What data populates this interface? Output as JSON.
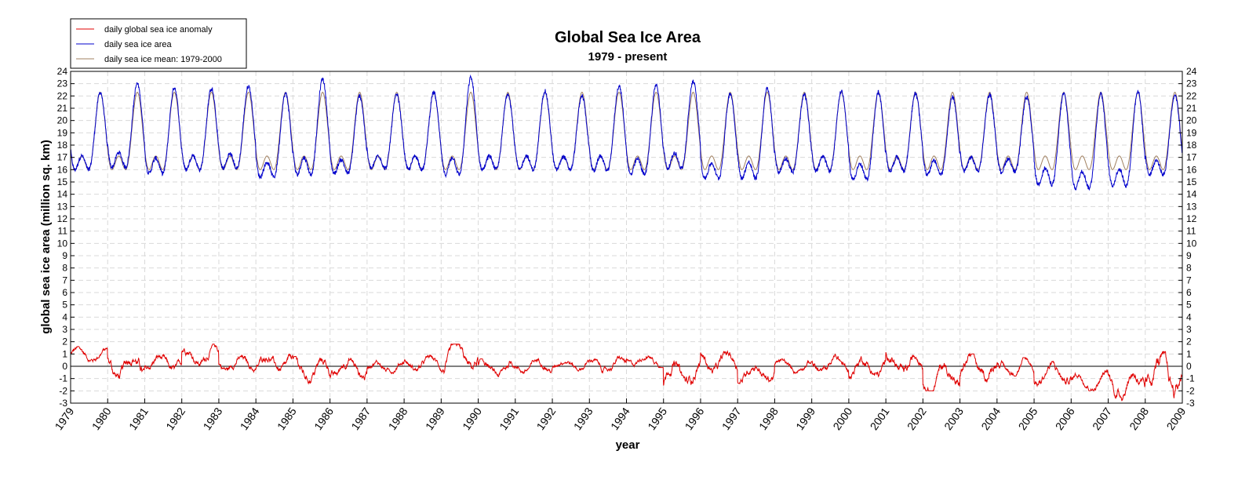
{
  "chart_data": {
    "type": "line",
    "title": "Global Sea Ice Area",
    "subtitle": "1979 - present",
    "xlabel": "year",
    "ylabel": "global sea ice area (million sq. km)",
    "xlim": [
      1979,
      2009
    ],
    "ylim": [
      -3,
      24
    ],
    "grid": true,
    "legend_position": "top-left",
    "x_ticks": [
      "1979",
      "1980",
      "1981",
      "1982",
      "1983",
      "1984",
      "1985",
      "1986",
      "1987",
      "1988",
      "1989",
      "1990",
      "1991",
      "1992",
      "1993",
      "1994",
      "1995",
      "1996",
      "1997",
      "1998",
      "1999",
      "2000",
      "2001",
      "2002",
      "2003",
      "2004",
      "2005",
      "2006",
      "2007",
      "2008",
      "2009"
    ],
    "y_ticks": [
      "-3",
      "-2",
      "-1",
      "0",
      "1",
      "2",
      "3",
      "4",
      "5",
      "6",
      "7",
      "8",
      "9",
      "10",
      "11",
      "12",
      "13",
      "14",
      "15",
      "16",
      "17",
      "18",
      "19",
      "20",
      "21",
      "22",
      "23",
      "24"
    ],
    "colors": {
      "anomaly": "#e00000",
      "area": "#0000cc",
      "mean": "#a08060",
      "zero_line": "#000000"
    },
    "series": [
      {
        "name": "daily global sea ice anomaly",
        "key": "anomaly",
        "annual_max": [
          1.6,
          1.3,
          1.0,
          1.8,
          0.9,
          1.2,
          0.8,
          1.0,
          0.6,
          0.9,
          1.8,
          0.6,
          0.7,
          0.8,
          0.8,
          1.1,
          0.7,
          1.3,
          0.5,
          0.6,
          1.0,
          1.0,
          1.3,
          0.5,
          1.0,
          0.7,
          0.4,
          -0.3,
          0.0,
          1.2
        ],
        "annual_min": [
          0.3,
          -1.3,
          -0.7,
          0.0,
          -0.5,
          -0.7,
          -1.4,
          -1.2,
          -0.6,
          -0.5,
          -0.6,
          -1.1,
          -0.6,
          -0.4,
          -0.6,
          -0.1,
          -1.8,
          -0.7,
          -1.4,
          -0.6,
          -0.8,
          -1.1,
          -1.1,
          -2.0,
          -1.4,
          -0.8,
          -1.6,
          -2.0,
          -2.8,
          -2.6
        ]
      },
      {
        "name": "daily sea ice area",
        "key": "area",
        "annual_max": [
          22.3,
          23.0,
          22.7,
          22.6,
          22.8,
          22.2,
          23.4,
          22.0,
          22.1,
          22.3,
          23.5,
          22.2,
          22.4,
          22.0,
          22.8,
          22.9,
          23.2,
          22.2,
          22.6,
          22.1,
          22.4,
          22.3,
          22.2,
          21.9,
          22.1,
          21.9,
          22.2,
          22.2,
          22.4,
          22.1
        ],
        "annual_min": [
          16.0,
          16.2,
          15.7,
          16.0,
          16.1,
          15.4,
          15.6,
          15.7,
          16.1,
          16.0,
          15.6,
          16.0,
          16.0,
          16.0,
          15.9,
          15.6,
          16.1,
          15.3,
          15.3,
          15.8,
          15.9,
          15.2,
          15.9,
          15.6,
          15.9,
          15.8,
          14.8,
          14.5,
          14.7,
          15.6
        ]
      },
      {
        "name": "daily sea ice mean: 1979-2000",
        "key": "mean",
        "annual_max": 22.3,
        "annual_min": 16.0
      }
    ]
  }
}
